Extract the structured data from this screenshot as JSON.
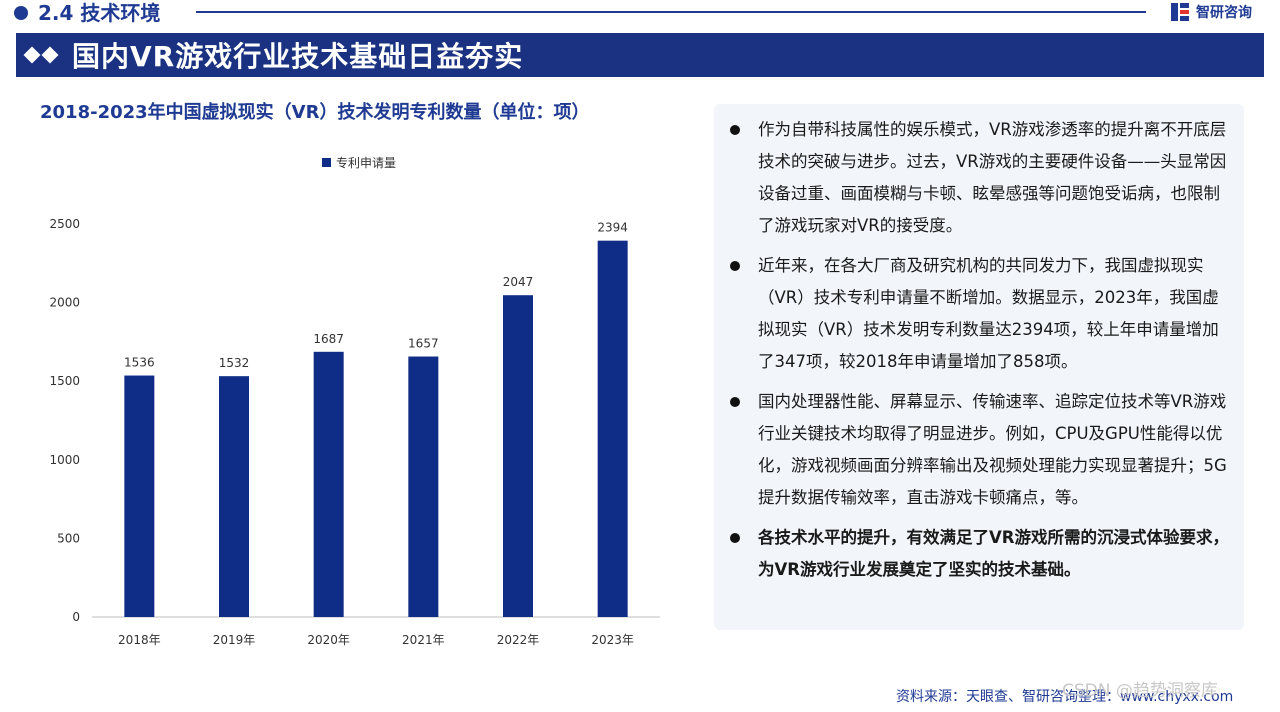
{
  "header": {
    "section_title": "2.4 技术环境",
    "logo_text": "智研咨询",
    "banner_title": "国内VR游戏行业技术基础日益夯实"
  },
  "chart_title": "2018-2023年中国虚拟现实（VR）技术发明专利数量（单位：项）",
  "chart_data": {
    "type": "bar",
    "categories": [
      "2018年",
      "2019年",
      "2020年",
      "2021年",
      "2022年",
      "2023年"
    ],
    "series": [
      {
        "name": "专利申请量",
        "values": [
          1536,
          1532,
          1687,
          1657,
          2047,
          2394
        ],
        "color": "#0f2d86"
      }
    ],
    "title": "2018-2023年中国虚拟现实（VR）技术发明专利数量（单位：项）",
    "ylim": [
      0,
      2500
    ],
    "yticks": [
      0,
      500,
      1000,
      1500,
      2000,
      2500
    ],
    "grid": false,
    "legend": "top-center"
  },
  "bullets": [
    {
      "text": "作为自带科技属性的娱乐模式，VR游戏渗透率的提升离不开底层技术的突破与进步。过去，VR游戏的主要硬件设备——头显常因设备过重、画面模糊与卡顿、眩晕感强等问题饱受诟病，也限制了游戏玩家对VR的接受度。",
      "bold": false
    },
    {
      "text": "近年来，在各大厂商及研究机构的共同发力下，我国虚拟现实（VR）技术专利申请量不断增加。数据显示，2023年，我国虚拟现实（VR）技术发明专利数量达2394项，较上年申请量增加了347项，较2018年申请量增加了858项。",
      "bold": false
    },
    {
      "text": "国内处理器性能、屏幕显示、传输速率、追踪定位技术等VR游戏行业关键技术均取得了明显进步。例如，CPU及GPU性能得以优化，游戏视频画面分辨率输出及视频处理能力实现显著提升；5G提升数据传输效率，直击游戏卡顿痛点，等。",
      "bold": false
    },
    {
      "text": "各技术水平的提升，有效满足了VR游戏所需的沉浸式体验要求，为VR游戏行业发展奠定了坚实的技术基础。",
      "bold": true
    }
  ],
  "source": "资料来源：天眼查、智研咨询整理：www.chyxx.com",
  "watermark": "CSDN @趋势洞察库"
}
